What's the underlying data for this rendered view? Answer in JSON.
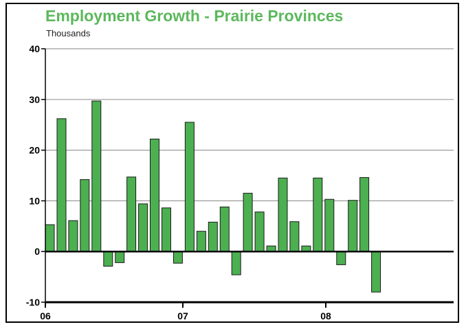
{
  "chart_data": {
    "type": "bar",
    "title": "Employment Growth - Prairie Provinces",
    "subtitle": "Thousands",
    "xlabel": "",
    "ylabel": "",
    "ylim": [
      -10,
      40
    ],
    "yticks": [
      40,
      30,
      20,
      10,
      0,
      -10
    ],
    "yticks_labels": [
      "40",
      "30",
      "20",
      "10",
      "0",
      "-10"
    ],
    "xticks_labels": [
      "06",
      "07",
      "08"
    ],
    "grid": true,
    "legend": "none",
    "bar_color": "#4caf50",
    "bar_edge_color": "#1a1a1a",
    "series": [
      {
        "values": [
          5.3,
          26.2,
          6.1,
          14.2,
          29.7,
          -2.9,
          -2.2,
          14.7,
          9.4,
          22.2,
          8.6,
          -2.3,
          25.5,
          4.0,
          5.8,
          8.8,
          -4.6,
          11.5,
          7.8,
          1.1,
          14.5,
          5.9,
          1.1,
          14.5,
          10.3,
          -2.6,
          10.1,
          14.6,
          -8.0
        ]
      }
    ]
  }
}
